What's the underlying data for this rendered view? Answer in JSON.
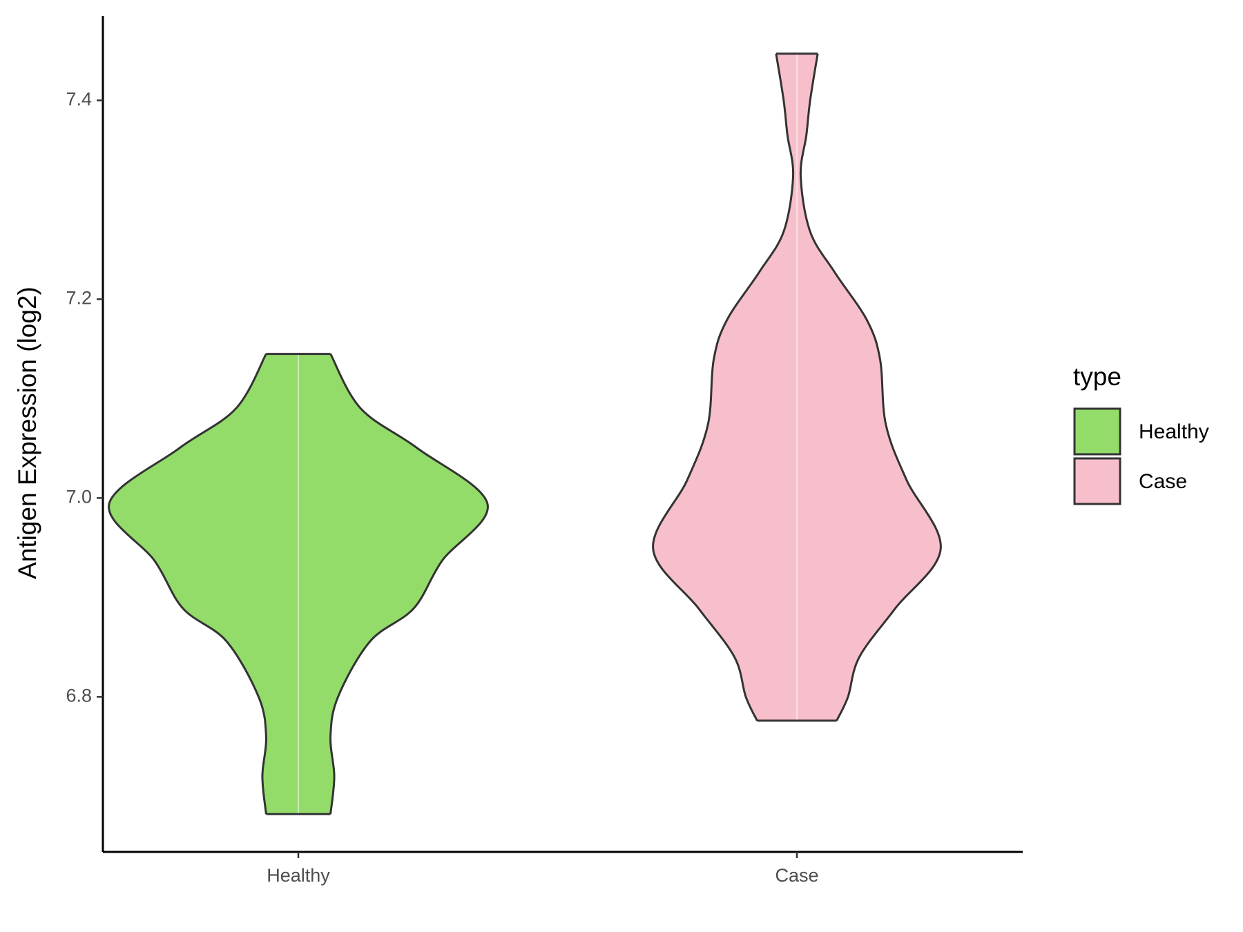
{
  "chart_data": {
    "type": "violin",
    "y_label": "Antigen Expression (log2)",
    "categories": [
      "Healthy",
      "Case"
    ],
    "series": [
      {
        "name": "Healthy",
        "color": "#93dc6a",
        "y": [
          7.145,
          7.09,
          7.05,
          6.994,
          6.937,
          6.889,
          6.856,
          6.8,
          6.76,
          6.72,
          6.682
        ],
        "width": [
          0.17,
          0.33,
          0.63,
          1.0,
          0.76,
          0.61,
          0.38,
          0.21,
          0.17,
          0.19,
          0.17
        ]
      },
      {
        "name": "Case",
        "color": "#f7bfcb",
        "y": [
          7.447,
          7.4,
          7.365,
          7.324,
          7.268,
          7.227,
          7.179,
          7.139,
          7.074,
          7.018,
          6.949,
          6.889,
          6.84,
          6.8,
          6.776
        ],
        "width": [
          0.11,
          0.07,
          0.05,
          0.02,
          0.07,
          0.2,
          0.37,
          0.44,
          0.47,
          0.58,
          0.76,
          0.52,
          0.33,
          0.27,
          0.21
        ]
      }
    ],
    "ylim": [
      6.644,
      7.485
    ],
    "yticks": [
      {
        "value": 6.8,
        "label": "6.8"
      },
      {
        "value": 7.0,
        "label": "7.0"
      },
      {
        "value": 7.2,
        "label": "7.2"
      },
      {
        "value": 7.4,
        "label": "7.4"
      }
    ],
    "legend": {
      "title": "type",
      "position": "right"
    }
  }
}
